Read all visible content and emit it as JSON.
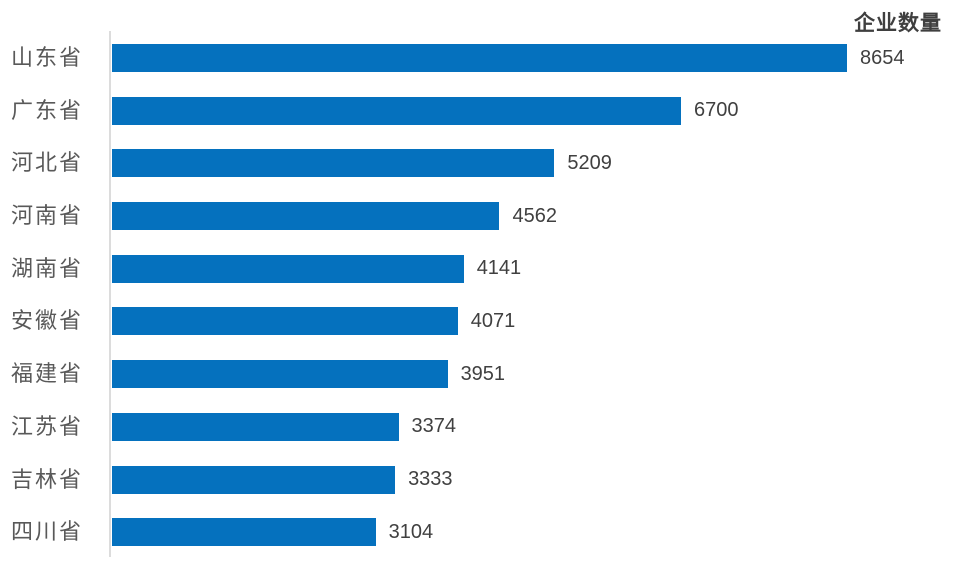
{
  "chart_data": {
    "type": "bar",
    "orientation": "horizontal",
    "title": "企业数量",
    "categories": [
      "山东省",
      "广东省",
      "河北省",
      "河南省",
      "湖南省",
      "安徽省",
      "福建省",
      "江苏省",
      "吉林省",
      "四川省"
    ],
    "values": [
      8654,
      6700,
      5209,
      4562,
      4141,
      4071,
      3951,
      3374,
      3333,
      3104
    ],
    "value_labels": [
      "8654",
      "6700",
      "5209",
      "4562",
      "4141",
      "4071",
      "3951",
      "3374",
      "3333",
      "3104"
    ],
    "xlabel": "",
    "ylabel": "",
    "grid": false,
    "legend_position": "none",
    "data_labels_shown": true,
    "colors": {
      "bar": "#0571be",
      "category_label": "#595959",
      "value_label": "#404040",
      "title": "#3f3f3f",
      "axis_line": "#dcdcdc",
      "background": "#ffffff"
    }
  }
}
